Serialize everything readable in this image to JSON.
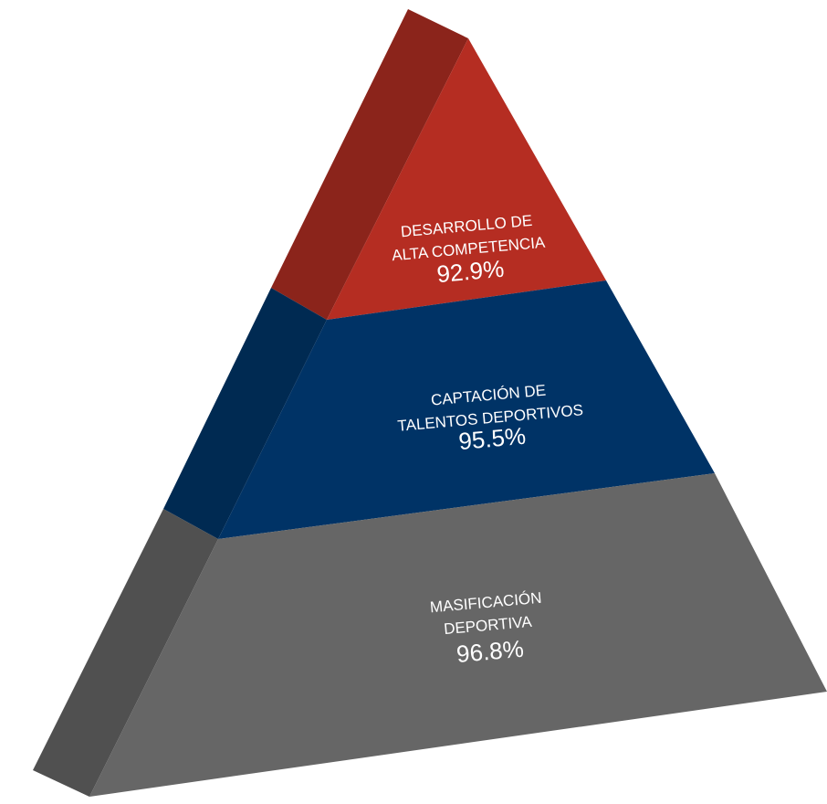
{
  "pyramid": {
    "levels": [
      {
        "title_line1": "DESARROLLO DE",
        "title_line2": "ALTA COMPETENCIA",
        "value": "92.9%",
        "front_color": "#b52d22",
        "side_color": "#8b241b"
      },
      {
        "title_line1": "CAPTACIÓN DE",
        "title_line2": "TALENTOS DEPORTIVOS",
        "value": "95.5%",
        "front_color": "#003366",
        "side_color": "#002a52"
      },
      {
        "title_line1": "MASIFICACIÓN",
        "title_line2": "DEPORTIVA",
        "value": "96.8%",
        "front_color": "#666666",
        "side_color": "#505050"
      }
    ]
  }
}
